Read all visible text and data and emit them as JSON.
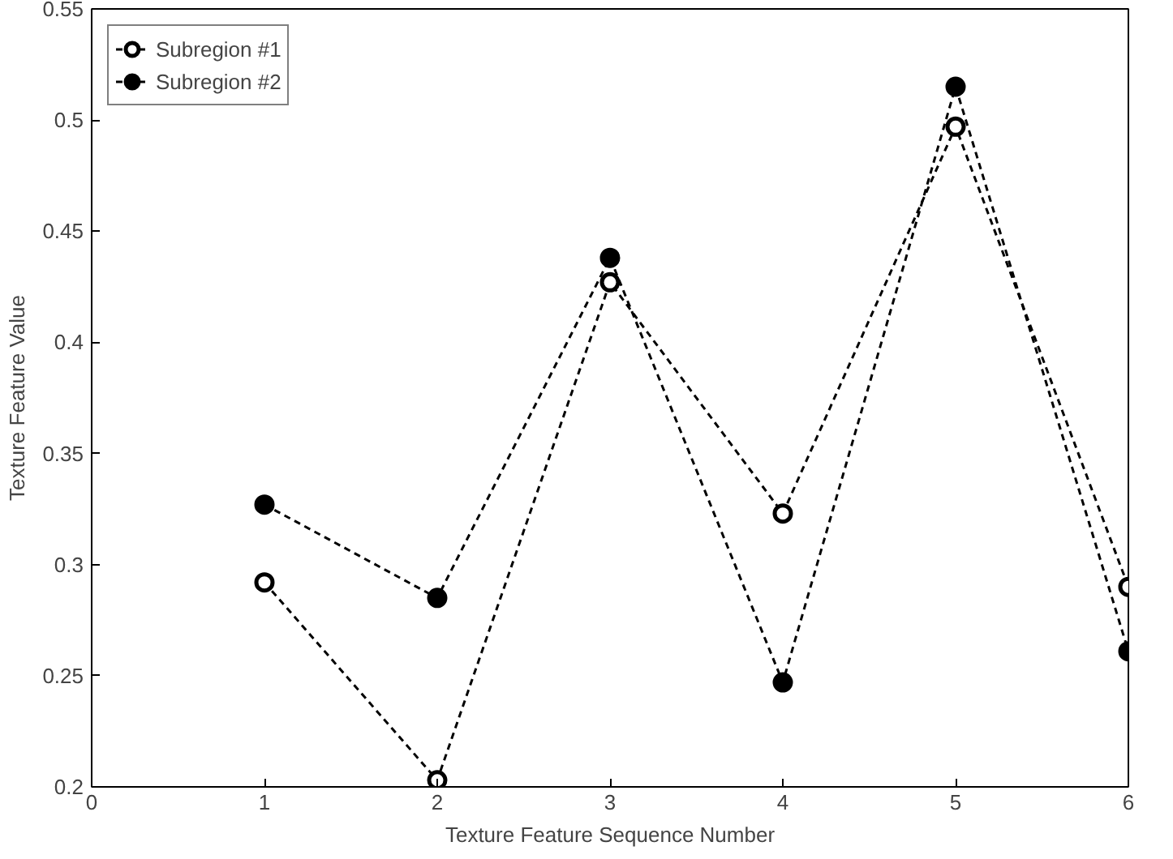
{
  "chart_data": {
    "type": "line",
    "xlabel": "Texture Feature Sequence Number",
    "ylabel": "Texture Feature Value",
    "x": [
      1,
      2,
      3,
      4,
      5,
      6
    ],
    "series": [
      {
        "name": "Subregion #1",
        "color": "#000000",
        "marker": "circle_open",
        "values": [
          0.292,
          0.203,
          0.427,
          0.323,
          0.497,
          0.29
        ]
      },
      {
        "name": "Subregion #2",
        "color": "#000000",
        "marker": "circle",
        "values": [
          0.327,
          0.285,
          0.438,
          0.247,
          0.515,
          0.261
        ]
      }
    ],
    "xlim": [
      0,
      6
    ],
    "xticks": [
      0,
      1,
      2,
      3,
      4,
      5,
      6
    ],
    "ylim": [
      0.2,
      0.55
    ],
    "yticks": [
      0.2,
      0.25,
      0.3,
      0.35,
      0.4,
      0.45,
      0.5,
      0.55
    ],
    "grid": false,
    "legend": "top left",
    "line_style": "dashed"
  }
}
